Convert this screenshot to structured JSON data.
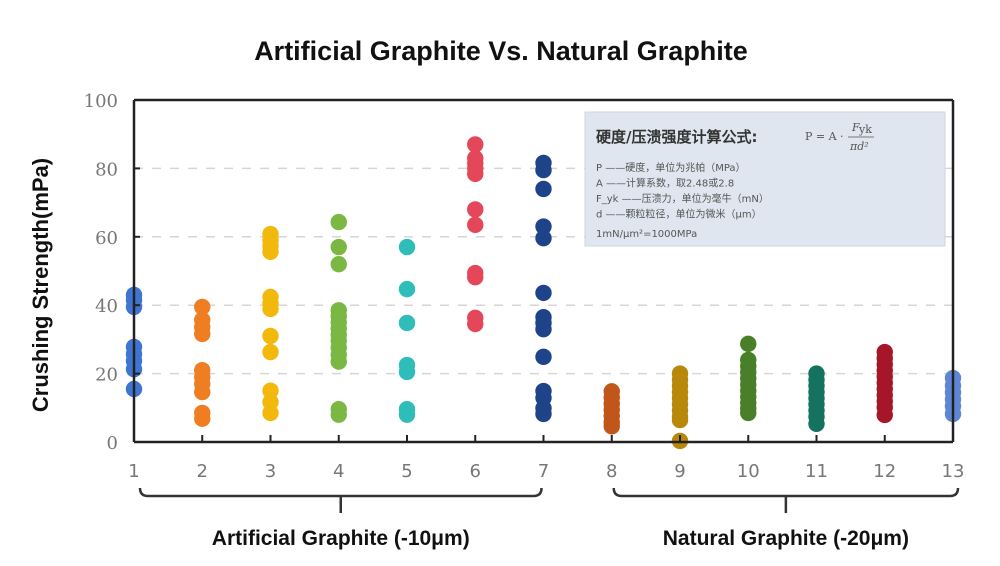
{
  "chart_data": {
    "type": "scatter",
    "title": "Artificial Graphite Vs. Natural Graphite",
    "xlabel": "",
    "ylabel": "Crushing Strength(mPa)",
    "ylim": [
      0,
      100
    ],
    "xlim": [
      1,
      13
    ],
    "y_ticks": [
      0,
      20,
      40,
      60,
      80,
      100
    ],
    "x_ticks": [
      1,
      2,
      3,
      4,
      5,
      6,
      7,
      8,
      9,
      10,
      11,
      12,
      13
    ],
    "grid": "horizontal dashed at 20, 40, 60, 80",
    "legend": "none",
    "groups": [
      {
        "label": "Artificial Graphite (-10μm)",
        "samples": [
          1,
          2,
          3,
          4,
          5,
          6,
          7
        ]
      },
      {
        "label": "Natural Graphite (-20μm)",
        "samples": [
          8,
          9,
          10,
          11,
          12,
          13
        ]
      }
    ],
    "series": [
      {
        "name": "1",
        "x": 1,
        "color": "#3f74d0",
        "values": [
          43,
          41.5,
          39.5,
          27.8,
          25.7,
          23.7,
          21.3,
          15.5
        ]
      },
      {
        "name": "2",
        "x": 2,
        "color": "#ef7d22",
        "values": [
          39.5,
          35.7,
          33.6,
          31.6,
          21,
          19,
          17,
          14.6,
          8.5,
          6.8
        ]
      },
      {
        "name": "3",
        "x": 3,
        "color": "#f2b90c",
        "values": [
          60.8,
          59,
          57.3,
          55.6,
          42.4,
          40.6,
          38.9,
          31,
          26.3,
          15,
          11.7,
          8.5
        ]
      },
      {
        "name": "4",
        "x": 4,
        "color": "#7ab843",
        "values": [
          64.3,
          57,
          52,
          38.5,
          36.8,
          35,
          33.2,
          31.4,
          29.6,
          27.6,
          25.5,
          23.5,
          9.6,
          8
        ]
      },
      {
        "name": "5",
        "x": 5,
        "color": "#2ebdb9",
        "values": [
          57,
          44.7,
          34.8,
          22.5,
          20.5,
          9.6,
          8
        ]
      },
      {
        "name": "6",
        "x": 6,
        "color": "#e4475a",
        "values": [
          87,
          83,
          81.5,
          80,
          78.4,
          68,
          63.5,
          49.4,
          48.2,
          36.3,
          34.5
        ]
      },
      {
        "name": "7",
        "x": 7,
        "color": "#1e4389",
        "values": [
          81.6,
          79.5,
          74,
          63,
          59.6,
          43.6,
          36.5,
          34.8,
          33,
          24.9,
          14.9,
          12.9,
          9.9,
          8.2
        ]
      },
      {
        "name": "8",
        "x": 8,
        "color": "#c0561a",
        "values": [
          14.8,
          13,
          11.2,
          9.4,
          7.6,
          5.8,
          4.6
        ]
      },
      {
        "name": "9",
        "x": 9,
        "color": "#b8880b",
        "values": [
          20,
          18.2,
          16.4,
          14.6,
          12.8,
          11,
          9.2,
          7.4,
          6.4,
          0.3
        ]
      },
      {
        "name": "10",
        "x": 10,
        "color": "#4a7f2a",
        "values": [
          28.7,
          24,
          22.2,
          20.4,
          18.6,
          16.8,
          15,
          13.2,
          11.4,
          9.8,
          8.5
        ]
      },
      {
        "name": "11",
        "x": 11,
        "color": "#14725f",
        "values": [
          20,
          18.2,
          16.4,
          14.6,
          12.8,
          11,
          9.2,
          7.4,
          5.3
        ]
      },
      {
        "name": "12",
        "x": 12,
        "color": "#a51628",
        "values": [
          26.3,
          24.5,
          22.7,
          20.9,
          19.1,
          17.3,
          15.5,
          13.7,
          11.9,
          10.1,
          7.9
        ]
      },
      {
        "name": "13",
        "x": 13,
        "color": "#5f86d5",
        "values": [
          18.7,
          16.5,
          14.5,
          12.5,
          10.5,
          8.2
        ]
      }
    ],
    "annotation_box": {
      "title": "硬度/压溃强度计算公式:",
      "formula": "P = A · F_yk / πd²",
      "lines": [
        "P  ——硬度，单位为兆帕（MPa）",
        "A  ——计算系数，取2.48或2.8",
        "F_yk ——压溃力，单位为毫牛（mN）",
        "d  ——颗粒粒径，单位为微米（μm）",
        "1mN/μm²=1000MPa"
      ]
    }
  }
}
